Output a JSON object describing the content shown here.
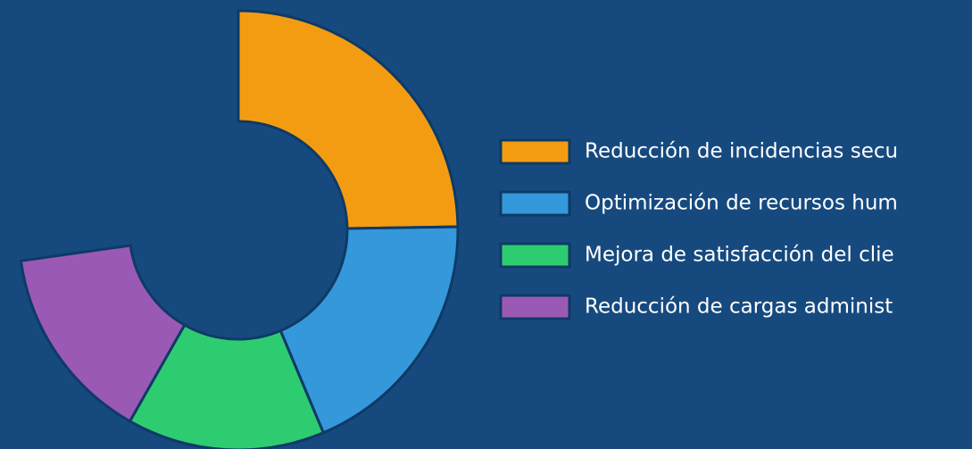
{
  "chart_data": {
    "type": "doughnut",
    "categories": [
      "Reducción de incidencias secu",
      "Optimización de recursos hum",
      "Mejora de satisfacción del clie",
      "Reducción de cargas administ"
    ],
    "values": [
      34,
      26,
      20,
      20
    ],
    "colors": [
      "#f39c12",
      "#3498db",
      "#2ecc71",
      "#9b59b6"
    ],
    "circumference": 262,
    "legend": "right"
  }
}
